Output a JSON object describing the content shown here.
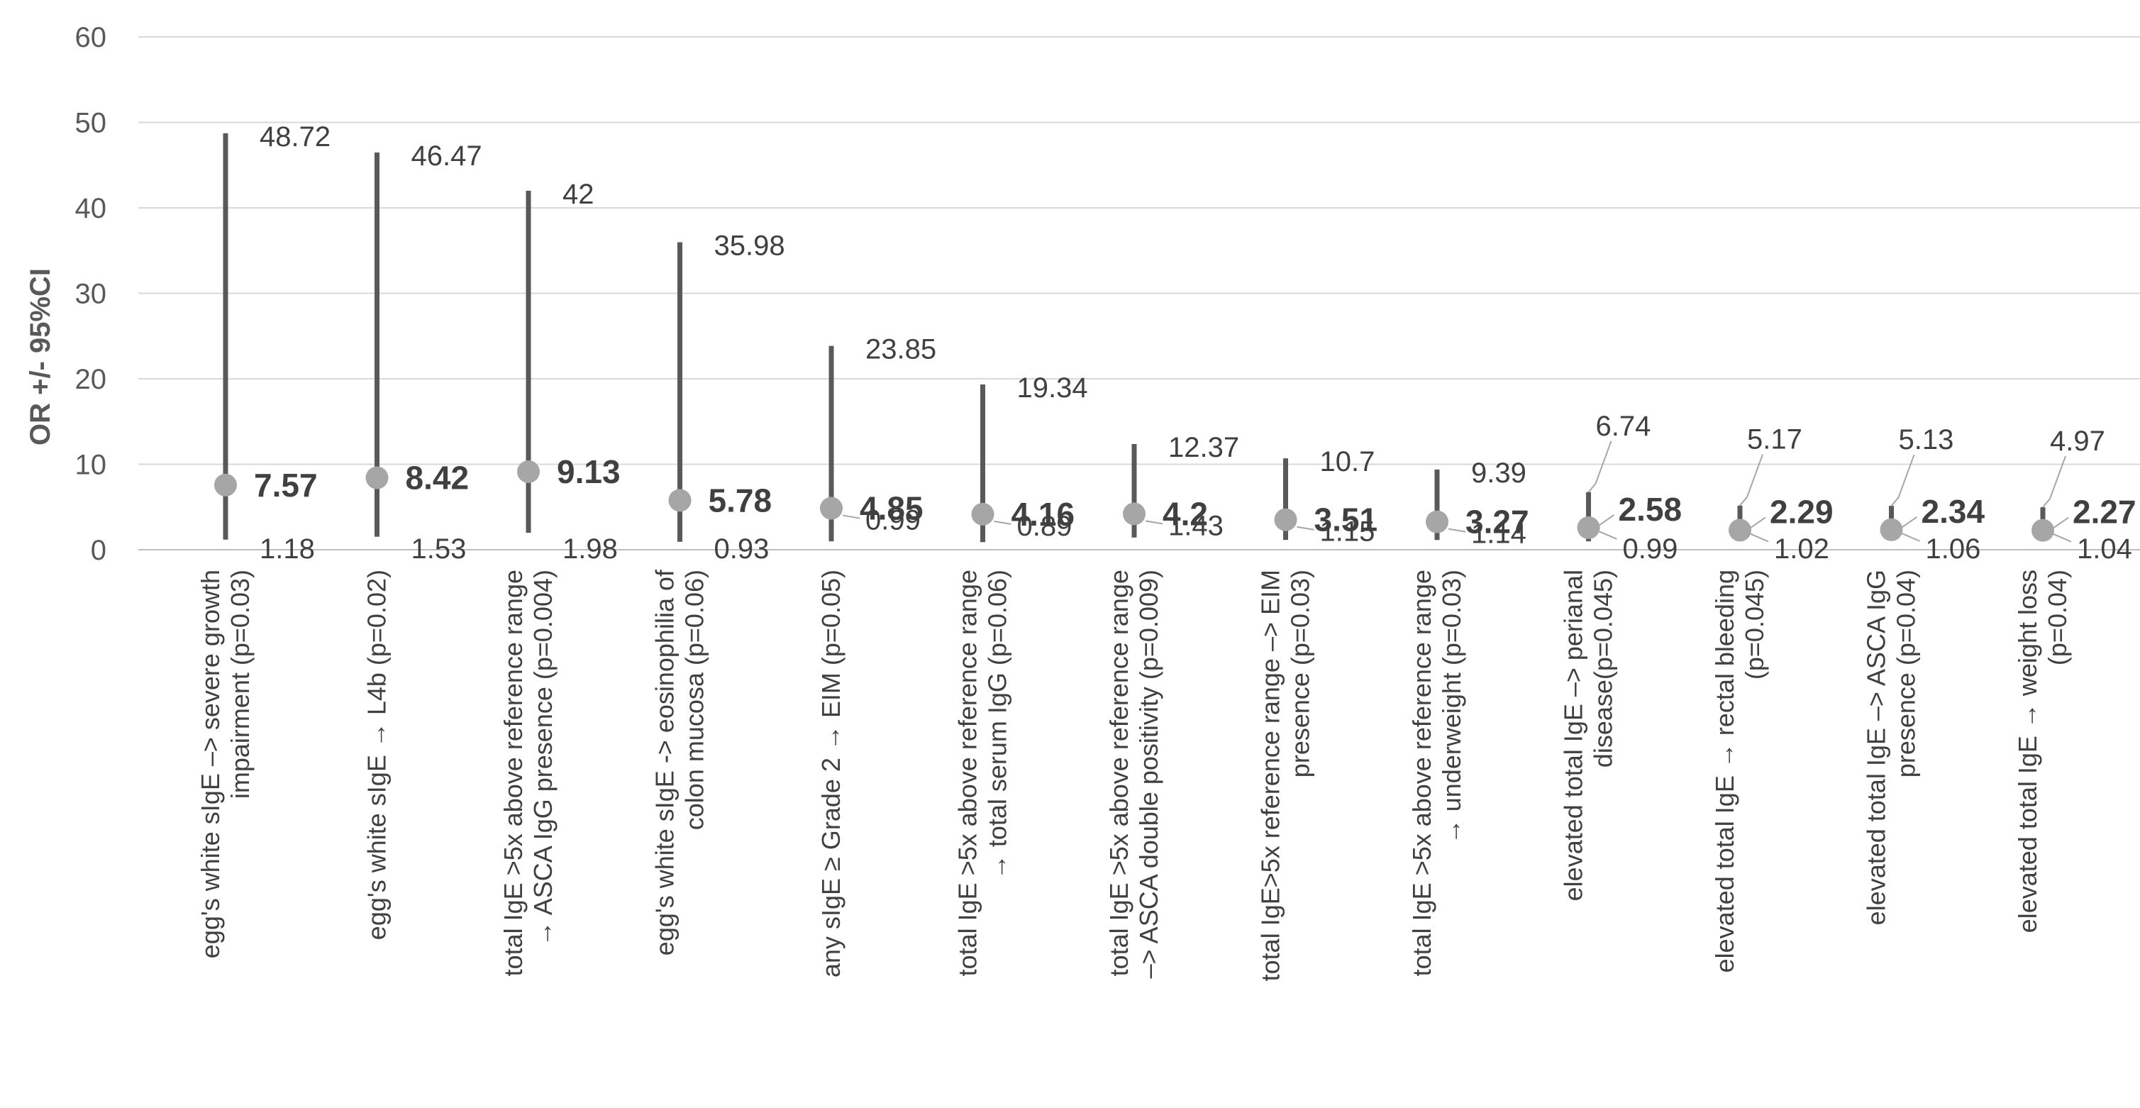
{
  "chart_data": {
    "type": "scatter",
    "title": "",
    "xlabel": "",
    "ylabel": "OR +/- 95%CI",
    "ylim": [
      0,
      60
    ],
    "yticks": [
      0,
      10,
      20,
      30,
      40,
      50,
      60
    ],
    "grid": true,
    "legend": "none",
    "colors": {
      "point": "#a6a6a6",
      "whisker": "#595959",
      "grid": "#d9d9d9",
      "text": "#404040"
    },
    "categories": [
      [
        "egg's white sIgE –> severe growth",
        "impairment  (p=0.03)"
      ],
      [
        "egg's white sIgE → L4b (p=0.02)"
      ],
      [
        "total IgE >5x above reference range",
        "→ ASCA IgG presence (p=0.004)"
      ],
      [
        "egg's white sIgE -> eosinophilia of",
        "colon mucosa  (p=0.06)"
      ],
      [
        "any sIgE ≥ Grade 2  → EIM (p=0.05)"
      ],
      [
        "total IgE >5x  above reference range",
        "→ total serum IgG (p=0.06)"
      ],
      [
        "total IgE >5x  above reference range",
        "–> ASCA double positivity (p=0.009)"
      ],
      [
        "total IgE>5x reference range –> EIM",
        "presence (p=0.03)"
      ],
      [
        "total IgE >5x above reference range",
        "→ underweight (p=0.03)"
      ],
      [
        "elevated total IgE –> perianal",
        "disease(p=0.045)"
      ],
      [
        "elevated total IgE → rectal bleeding",
        "(p=0.045)"
      ],
      [
        "elevated total IgE –> ASCA IgG",
        "presence (p=0.04)"
      ],
      [
        "elevated total IgE → weight loss",
        "(p=0.04)"
      ]
    ],
    "or": [
      7.57,
      8.42,
      9.13,
      5.78,
      4.85,
      4.16,
      4.2,
      3.51,
      3.27,
      2.58,
      2.29,
      2.34,
      2.27
    ],
    "ci_low": [
      1.18,
      1.53,
      1.98,
      0.93,
      0.99,
      0.89,
      1.43,
      1.15,
      1.14,
      0.99,
      1.02,
      1.06,
      1.04
    ],
    "ci_high": [
      48.72,
      46.47,
      42,
      35.98,
      23.85,
      19.34,
      12.37,
      10.7,
      9.39,
      6.74,
      5.17,
      5.13,
      4.97
    ],
    "or_labels": [
      "7.57",
      "8.42",
      "9.13",
      "5.78",
      "4.85",
      "4.16",
      "4.2",
      "3.51",
      "3.27",
      "2.58",
      "2.29",
      "2.34",
      "2.27"
    ],
    "ci_low_labels": [
      "1.18",
      "1.53",
      "1.98",
      "0.93",
      "0.99",
      "0.89",
      "1.43",
      "1.15",
      "1.14",
      "0.99",
      "1.02",
      "1.06",
      "1.04"
    ],
    "ci_high_labels": [
      "48.72",
      "46.47",
      "42",
      "35.98",
      "23.85",
      "19.34",
      "12.37",
      "10.7",
      "9.39",
      "6.74",
      "5.17",
      "5.13",
      "4.97"
    ]
  }
}
